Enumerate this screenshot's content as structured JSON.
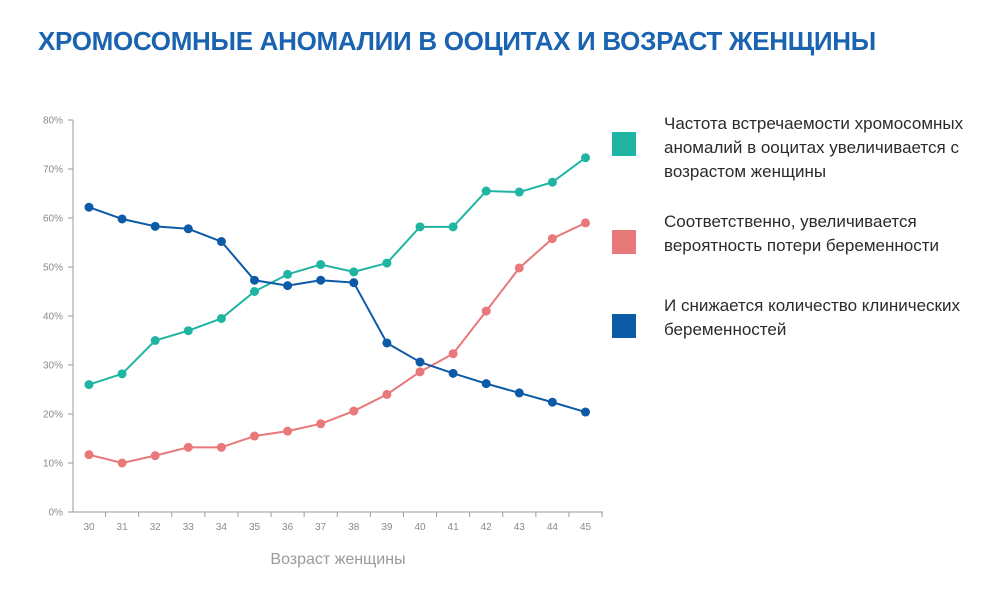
{
  "title": "ХРОМОСОМНЫЕ АНОМАЛИИ В ООЦИТАХ И ВОЗРАСТ ЖЕНЩИНЫ",
  "legend": [
    {
      "label": "Частота встречаемости хромосомных аномалий в ооцитах увеличивается с возрастом женщины",
      "color": "#1fb5a2"
    },
    {
      "label": "Соответственно, увеличивается вероятность потери беременности",
      "color": "#e8787a"
    },
    {
      "label": "И снижается количество клинических беременностей",
      "color": "#0d5aa6"
    }
  ],
  "chart_data": {
    "type": "line",
    "title": "ХРОМОСОМНЫЕ АНОМАЛИИ В ООЦИТАХ И ВОЗРАСТ ЖЕНЩИНЫ",
    "xlabel": "Возраст женщины",
    "ylabel": "",
    "x": [
      30,
      31,
      32,
      33,
      34,
      35,
      36,
      37,
      38,
      39,
      40,
      41,
      42,
      43,
      44,
      45
    ],
    "y_ticks": [
      "0%",
      "10%",
      "20%",
      "30%",
      "40%",
      "50%",
      "60%",
      "70%",
      "80%"
    ],
    "ylim": [
      0,
      80
    ],
    "grid": false,
    "series": [
      {
        "name": "Частота встречаемости хромосомных аномалий в ооцитах",
        "color": "#1fb5a2",
        "values": [
          26,
          28.2,
          35,
          37,
          39.5,
          45,
          48.5,
          50.5,
          49,
          50.8,
          58.2,
          58.2,
          65.5,
          65.3,
          67.3,
          72.3
        ]
      },
      {
        "name": "Вероятность потери беременности",
        "color": "#e8787a",
        "values": [
          11.7,
          10,
          11.5,
          13.2,
          13.2,
          15.5,
          16.5,
          18,
          20.6,
          24,
          28.6,
          32.3,
          41,
          49.8,
          55.8,
          59
        ]
      },
      {
        "name": "Количество клинических беременностей",
        "color": "#0d5aa6",
        "values": [
          62.2,
          59.8,
          58.3,
          57.8,
          55.2,
          47.3,
          46.2,
          47.3,
          46.8,
          34.5,
          30.6,
          28.3,
          26.2,
          24.3,
          22.4,
          20.4
        ]
      }
    ]
  }
}
